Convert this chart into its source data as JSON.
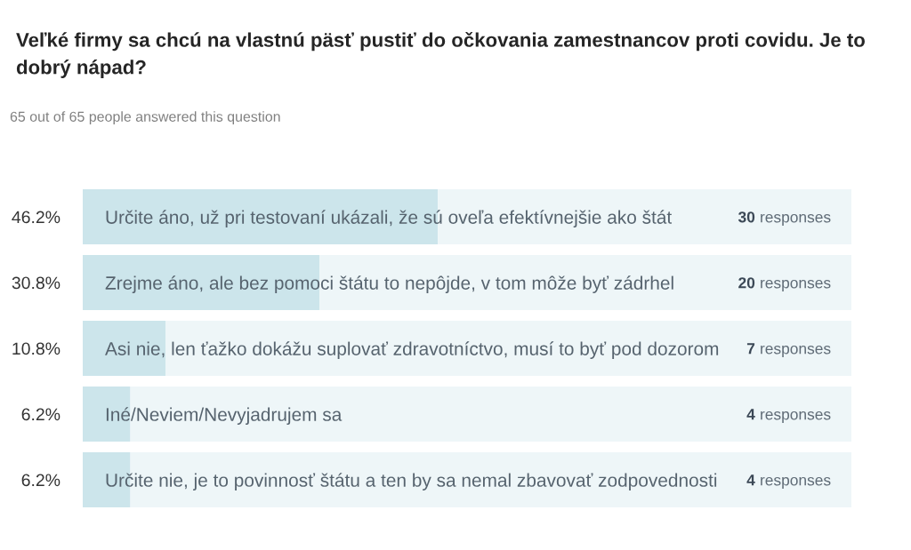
{
  "chart_data": {
    "type": "bar",
    "orientation": "horizontal",
    "stacked": true,
    "title": "Veľké firmy sa chcú na vlastnú päsť pustiť do očkovania zamestnancov proti covidu. Je to dobrý nápad?",
    "subtitle": "65 out of 65 people answered this question",
    "categories": [
      "Určite áno, už pri testovaní ukázali, že sú oveľa efektívnejšie ako štát",
      "Zrejme áno, ale bez pomoci štátu to nepôjde, v tom môže byť zádrhel",
      "Asi nie, len ťažko dokážu suplovať zdravotníctvo, musí to byť pod dozorom",
      "Iné/Neviem/Nevyjadrujem sa",
      "Určite nie, je to povinnosť štátu a ten by sa nemal zbavovať zodpovednosti"
    ],
    "series": [
      {
        "color": "#cce5eb",
        "values": [
          46.2,
          30.8,
          10.8,
          6.2,
          6.2
        ],
        "value_labels": [
          "46.2%",
          "30.8%",
          "10.8%",
          "6.2%",
          "6.2%"
        ]
      },
      {
        "color": "#eef6f8",
        "values": [
          53.8,
          69.2,
          89.2,
          93.8,
          93.8
        ]
      }
    ],
    "xlim": [
      0,
      100
    ],
    "tick_labels": "y",
    "annotations": [
      "30 responses",
      "20 responses",
      "7 responses",
      "4 responses",
      "4 responses"
    ]
  }
}
